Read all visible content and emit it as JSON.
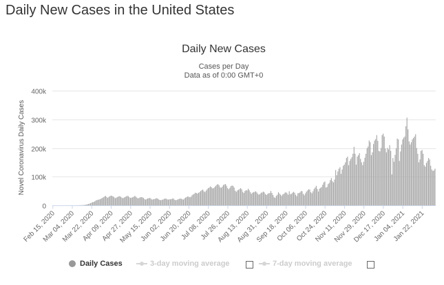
{
  "page": {
    "heading": "Daily New Cases in the United States"
  },
  "legend": {
    "items": [
      {
        "label": "Daily Cases",
        "active": true
      },
      {
        "label": "3-day moving average",
        "active": false
      },
      {
        "label": "7-day moving average",
        "active": false
      }
    ]
  },
  "colors": {
    "bars": "#a6a6a6",
    "legend_active": "#999999",
    "legend_inactive": "#cccccc"
  },
  "chart_data": {
    "type": "bar",
    "title": "Daily New Cases",
    "subtitle_1": "Cases per Day",
    "subtitle_2": "Data as of 0:00 GMT+0",
    "ylabel": "Novel Coronavirus Daily Cases",
    "xlabel": "",
    "ylim": [
      0,
      400000
    ],
    "yticks": [
      0,
      100000,
      200000,
      300000,
      400000
    ],
    "ytick_labels": [
      "0",
      "100k",
      "200k",
      "300k",
      "400k"
    ],
    "grid": true,
    "legend_position": "bottom",
    "x_start": "2020-02-15",
    "x_end": "2021-02-03",
    "xtick_labels": [
      "Feb 15, 2020",
      "Mar 04, 2020",
      "Mar 22, 2020",
      "Apr 09, 2020",
      "Apr 27, 2020",
      "May 15, 2020",
      "Jun 02, 2020",
      "Jun 20, 2020",
      "Jul 08, 2020",
      "Jul 26, 2020",
      "Aug 13, 2020",
      "Aug 31, 2020",
      "Sep 18, 2020",
      "Oct 06, 2020",
      "Oct 24, 2020",
      "Nov 11, 2020",
      "Nov 29, 2020",
      "Dec 17, 2020",
      "Jan 04, 2021",
      "Jan 22, 2021"
    ],
    "series": [
      {
        "name": "Daily Cases",
        "monthly_pattern": [
          {
            "month": "2020-02",
            "values": [
              0,
              1,
              0,
              3,
              0,
              2,
              1,
              2,
              6,
              3,
              5,
              7,
              2,
              8
            ]
          },
          {
            "month": "2020-03",
            "values": [
              9,
              12,
              15,
              40,
              70,
              90,
              120,
              150,
              220,
              320,
              450,
              550,
              700,
              900,
              1200,
              1800,
              2400,
              3500,
              4700,
              5900,
              7500,
              9500,
              11000,
              12000,
              14000,
              17000,
              18500,
              19500,
              20500,
              21500,
              24000
            ]
          },
          {
            "month": "2020-04",
            "values": [
              26000,
              28000,
              31000,
              33000,
              29000,
              26000,
              30000,
              32000,
              34000,
              33000,
              31000,
              28000,
              25000,
              27000,
              29000,
              31000,
              32000,
              30000,
              27000,
              25000,
              27000,
              29000,
              31000,
              33000,
              32000,
              28000,
              26000,
              27000,
              28000,
              30000
            ]
          },
          {
            "month": "2020-05",
            "values": [
              33000,
              30000,
              27000,
              24000,
              26000,
              28000,
              29000,
              28000,
              26000,
              22000,
              20000,
              22000,
              24000,
              25000,
              26000,
              23000,
              20000,
              21000,
              22000,
              23000,
              25000,
              24000,
              21000,
              19000,
              18000,
              19000,
              20000,
              22000,
              24000,
              23000,
              21000
            ]
          },
          {
            "month": "2020-06",
            "values": [
              20000,
              21000,
              21000,
              22000,
              24000,
              23000,
              19000,
              18000,
              19000,
              21000,
              22000,
              24000,
              23000,
              21000,
              20000,
              24000,
              27000,
              29000,
              31000,
              30000,
              28000,
              30000,
              35000,
              38000,
              40000,
              44000,
              43000,
              41000,
              44000,
              46000
            ]
          },
          {
            "month": "2020-07",
            "values": [
              50000,
              53000,
              55000,
              49000,
              46000,
              51000,
              56000,
              60000,
              62000,
              66000,
              63000,
              59000,
              60000,
              64000,
              68000,
              72000,
              74000,
              70000,
              63000,
              61000,
              65000,
              71000,
              73000,
              74000,
              68000,
              60000,
              56000,
              61000,
              67000,
              69000,
              68000
            ]
          },
          {
            "month": "2020-08",
            "values": [
              62000,
              51000,
              47000,
              52000,
              54000,
              57000,
              60000,
              56000,
              47000,
              43000,
              50000,
              53000,
              52000,
              58000,
              53000,
              46000,
              40000,
              44000,
              46000,
              47000,
              49000,
              45000,
              40000,
              37000,
              40000,
              44000,
              45000,
              48000,
              45000,
              39000,
              36000
            ]
          },
          {
            "month": "2020-09",
            "values": [
              40000,
              42000,
              43000,
              50000,
              43000,
              36000,
              28000,
              26000,
              33000,
              37000,
              46000,
              41000,
              37000,
              33000,
              38000,
              40000,
              44000,
              46000,
              42000,
              37000,
              49000,
              39000,
              40000,
              44000,
              47000,
              44000,
              37000,
              32000,
              42000,
              43000
            ]
          },
          {
            "month": "2020-10",
            "values": [
              45000,
              50000,
              49000,
              40000,
              35000,
              42000,
              48000,
              52000,
              56000,
              55000,
              46000,
              42000,
              49000,
              57000,
              62000,
              68000,
              57000,
              48000,
              58000,
              61000,
              64000,
              72000,
              80000,
              83000,
              62000,
              64000,
              74000,
              78000,
              88000,
              95000,
              84000
            ]
          },
          {
            "month": "2020-11",
            "values": [
              80000,
              90000,
              123000,
              105000,
              118000,
              128000,
              133000,
              110000,
              125000,
              138000,
              142000,
              150000,
              165000,
              170000,
              140000,
              155000,
              162000,
              168000,
              180000,
              204000,
              180000,
              142000,
              170000,
              175000,
              182000,
              162000,
              150000,
              140000,
              152000,
              166000
            ]
          },
          {
            "month": "2020-12",
            "values": [
              180000,
              199000,
              205000,
              226000,
              220000,
              175000,
              185000,
              214000,
              226000,
              231000,
              245000,
              225000,
              190000,
              188000,
              200000,
              245000,
              250000,
              240000,
              198000,
              185000,
              200000,
              195000,
              210000,
              190000,
              108000,
              165000,
              152000,
              176000,
              199000,
              233000,
              230000
            ]
          },
          {
            "month": "2021-01",
            "values": [
              155000,
              188000,
              212000,
              230000,
              236000,
              240000,
              276000,
              306000,
              265000,
              223000,
              212000,
              220000,
              230000,
              235000,
              240000,
              248000,
              200000,
              180000,
              150000,
              160000,
              190000,
              193000,
              180000,
              140000,
              135000,
              148000,
              155000,
              165000,
              160000,
              138000,
              125000
            ]
          },
          {
            "month": "2021-02",
            "values": [
              120000,
              122000,
              128000
            ]
          }
        ]
      }
    ]
  }
}
